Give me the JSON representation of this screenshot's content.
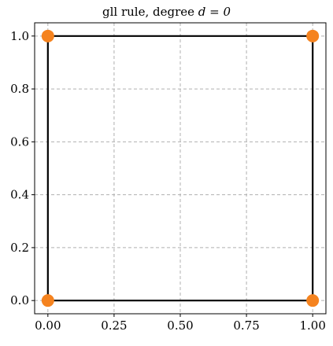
{
  "chart_data": {
    "type": "scatter",
    "title": "gll rule, degree ",
    "title_math": "d = 0",
    "xlabel": "",
    "ylabel": "",
    "xlim": [
      -0.05,
      1.05
    ],
    "ylim": [
      -0.05,
      1.05
    ],
    "grid": true,
    "grid_style": "dashed",
    "xticks": [
      0.0,
      0.25,
      0.5,
      0.75,
      1.0
    ],
    "xtick_labels": [
      "0.00",
      "0.25",
      "0.50",
      "0.75",
      "1.00"
    ],
    "yticks": [
      0.0,
      0.2,
      0.4,
      0.6,
      0.8,
      1.0
    ],
    "ytick_labels": [
      "0.0",
      "0.2",
      "0.4",
      "0.6",
      "0.8",
      "1.0"
    ],
    "element_outline": {
      "x": [
        0,
        1,
        1,
        0,
        0
      ],
      "y": [
        0,
        0,
        1,
        1,
        0
      ],
      "color": "#000000"
    },
    "points": {
      "x": [
        0,
        1,
        0,
        1
      ],
      "y": [
        0,
        0,
        1,
        1
      ],
      "color": "#f5831f"
    }
  }
}
